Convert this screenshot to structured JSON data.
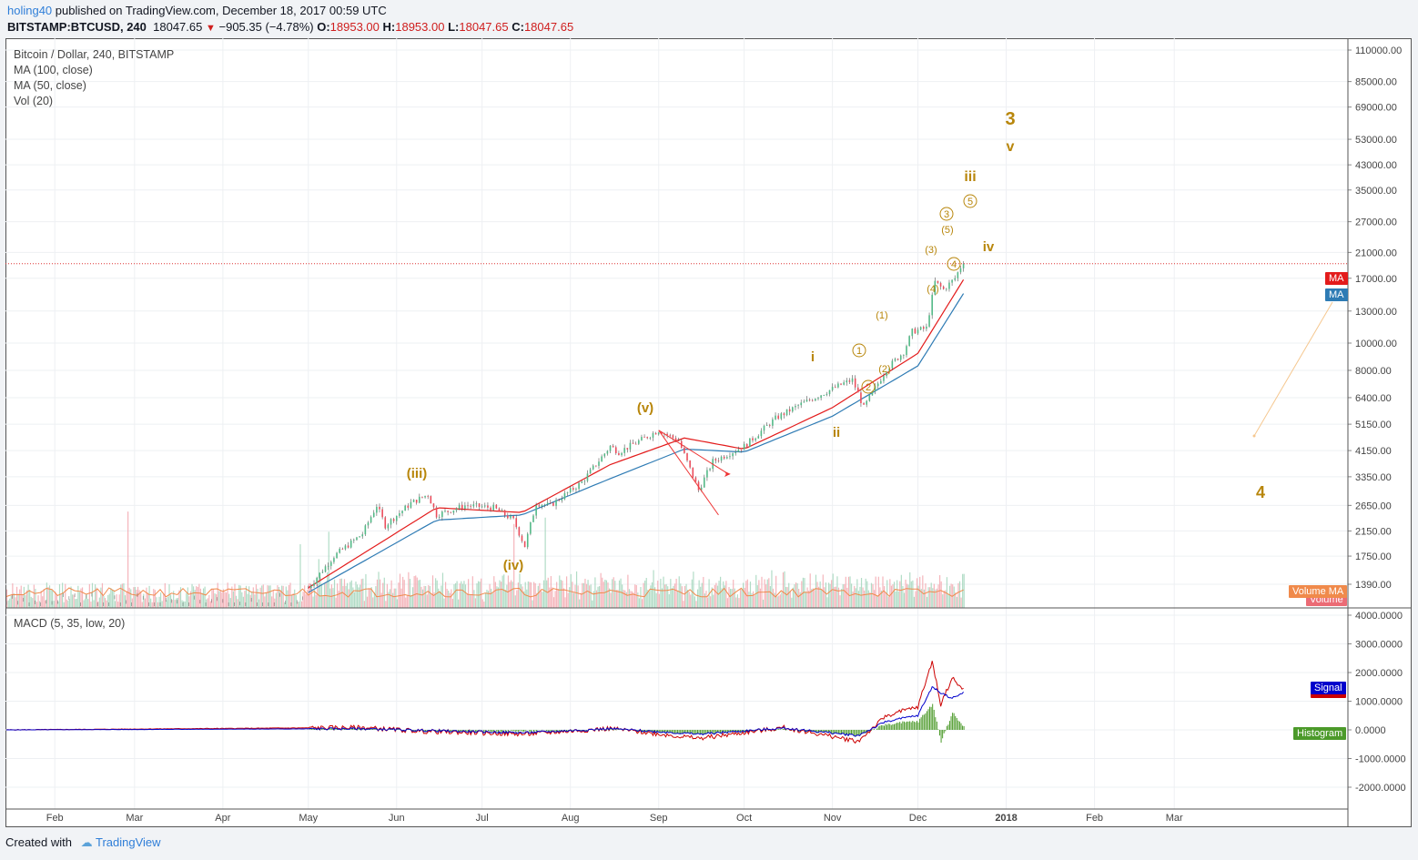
{
  "header": {
    "username": "holing40",
    "published": "published on TradingView.com, December 18, 2017 00:59 UTC",
    "symbol": "BITSTAMP:BTCUSD, 240",
    "last": "18047.65",
    "change": "−905.35 (−4.78%)",
    "open_label": "O:",
    "open": "18953.00",
    "high_label": "H:",
    "high": "18953.00",
    "low_label": "L:",
    "low": "18047.65",
    "close_label": "C:",
    "close": "18047.65"
  },
  "legend": {
    "title": "Bitcoin / Dollar, 240, BITSTAMP",
    "ma100": "MA (100, close)",
    "ma50": "MA (50, close)",
    "vol": "Vol (20)",
    "macd": "MACD (5, 35, low, 20)"
  },
  "tags": {
    "ma_red": "MA",
    "ma_blue": "MA",
    "volume_ma": "Volume MA",
    "volume": "Volume",
    "signal": "Signal",
    "histogram": "Histogram"
  },
  "footer": {
    "created": "Created with",
    "brand": "TradingView"
  },
  "colors": {
    "up": "#53b987",
    "down": "#eb4d5c",
    "ma_red": "#e31b1b",
    "ma_blue": "#2e7bb4",
    "wave": "#b8860b",
    "macd": "#cc0000",
    "signal": "#0000cc",
    "histogram": "#4c9a2a",
    "volume_ma": "#f08a4b"
  },
  "chart_data": {
    "type": "line",
    "title": "Bitcoin / Dollar, 240, BITSTAMP",
    "log_scale": true,
    "y_ticks": [
      "110000.00",
      "85000.00",
      "69000.00",
      "53000.00",
      "43000.00",
      "35000.00",
      "27000.00",
      "21000.00",
      "17000.00",
      "13000.00",
      "10000.00",
      "8000.00",
      "6400.00",
      "5150.00",
      "4150.00",
      "3350.00",
      "2650.00",
      "2150.00",
      "1750.00",
      "1390.00"
    ],
    "x_ticks": [
      "Feb",
      "Mar",
      "Apr",
      "May",
      "Jun",
      "Jul",
      "Aug",
      "Sep",
      "Oct",
      "Nov",
      "Dec",
      "2018",
      "Feb",
      "Mar"
    ],
    "x_range": [
      "2017-01-15",
      "2018-04-30"
    ],
    "price_series": {
      "name": "BTCUSD",
      "x": [
        "2017-05-01",
        "2017-05-10",
        "2017-05-20",
        "2017-05-25",
        "2017-05-28",
        "2017-06-06",
        "2017-06-12",
        "2017-06-15",
        "2017-06-25",
        "2017-07-05",
        "2017-07-12",
        "2017-07-16",
        "2017-07-20",
        "2017-07-25",
        "2017-08-05",
        "2017-08-15",
        "2017-08-18",
        "2017-09-01",
        "2017-09-08",
        "2017-09-15",
        "2017-09-20",
        "2017-10-01",
        "2017-10-12",
        "2017-10-20",
        "2017-11-05",
        "2017-11-08",
        "2017-11-12",
        "2017-11-20",
        "2017-11-26",
        "2017-11-29",
        "2017-12-04",
        "2017-12-07",
        "2017-12-10",
        "2017-12-14",
        "2017-12-17"
      ],
      "y": [
        1350,
        1750,
        2100,
        2650,
        2250,
        2700,
        2900,
        2450,
        2650,
        2600,
        2350,
        1900,
        2700,
        2650,
        3200,
        4300,
        4100,
        4900,
        4500,
        3000,
        3800,
        4300,
        5400,
        6000,
        7200,
        7400,
        5900,
        8100,
        9300,
        11000,
        11300,
        16500,
        15500,
        17000,
        19500
      ]
    },
    "ma_series": [
      {
        "name": "MA (100, close)",
        "x": [
          "2017-05-01",
          "2017-06-15",
          "2017-07-15",
          "2017-08-15",
          "2017-09-10",
          "2017-10-01",
          "2017-11-01",
          "2017-12-01",
          "2017-12-17"
        ],
        "y": [
          1300,
          2350,
          2450,
          3300,
          4200,
          4100,
          5500,
          8300,
          15000
        ]
      },
      {
        "name": "MA (50, close)",
        "x": [
          "2017-05-01",
          "2017-06-15",
          "2017-07-15",
          "2017-08-15",
          "2017-09-10",
          "2017-10-01",
          "2017-11-01",
          "2017-12-01",
          "2017-12-17"
        ],
        "y": [
          1350,
          2600,
          2500,
          3700,
          4600,
          4200,
          5900,
          9200,
          16800
        ]
      }
    ],
    "volume_ma_label": "Volume MA",
    "wave_labels": [
      "3",
      "v",
      "iii",
      "iv",
      "4",
      "i",
      "ii",
      "(iii)",
      "(iv)",
      "(v)",
      "(1)",
      "(2)",
      "(3)",
      "(4)",
      "(5)",
      "1",
      "2",
      "3",
      "4",
      "5"
    ],
    "macd": {
      "name": "MACD (5, 35, low, 20)",
      "y_ticks": [
        "4000.0000",
        "3000.0000",
        "2000.0000",
        "1000.0000",
        "0.0000",
        "-1000.0000",
        "-2000.0000"
      ],
      "x": [
        "2017-01-15",
        "2017-05-20",
        "2017-06-10",
        "2017-07-16",
        "2017-08-15",
        "2017-09-15",
        "2017-10-15",
        "2017-11-10",
        "2017-11-20",
        "2017-12-01",
        "2017-12-06",
        "2017-12-09",
        "2017-12-13",
        "2017-12-17"
      ],
      "macd": [
        0,
        80,
        -50,
        -150,
        50,
        -300,
        80,
        -400,
        500,
        800,
        2400,
        900,
        1800,
        1400
      ],
      "signal": [
        0,
        40,
        -20,
        -100,
        40,
        -150,
        60,
        -200,
        300,
        500,
        1500,
        1300,
        1100,
        1300
      ],
      "histogram": [
        0,
        30,
        -30,
        -50,
        10,
        -150,
        20,
        -200,
        200,
        300,
        900,
        -400,
        600,
        100
      ]
    }
  }
}
